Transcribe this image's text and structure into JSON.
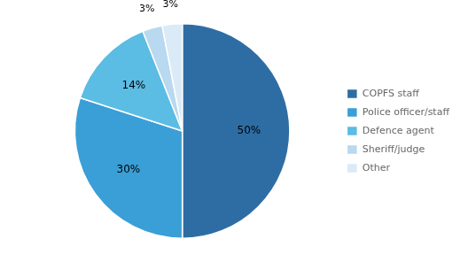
{
  "chart_data": {
    "type": "pie",
    "categories": [
      "COPFS staff",
      "Police officer/staff",
      "Defence agent",
      "Sheriff/judge",
      "Other"
    ],
    "values": [
      50,
      30,
      14,
      3,
      3
    ],
    "value_labels": [
      "50%",
      "30%",
      "14%",
      "3%",
      "3%"
    ],
    "colors": [
      "#2e6da4",
      "#3a9fd6",
      "#5bbce4",
      "#b8d9ef",
      "#daeaf6"
    ],
    "data_labels": true,
    "legend": "right"
  }
}
